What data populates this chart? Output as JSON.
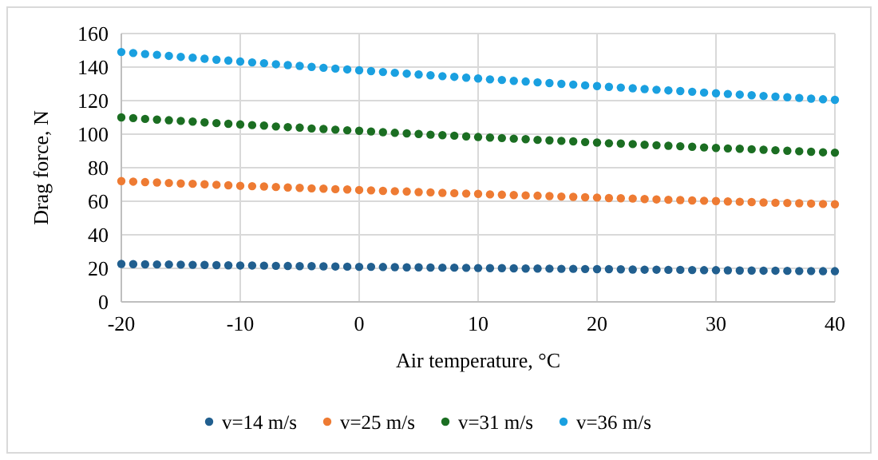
{
  "chart_data": {
    "type": "scatter",
    "xlabel": "Air temperature, °C",
    "ylabel": "Drag force, N",
    "xlim": [
      -20,
      40
    ],
    "xticks": [
      -20,
      -10,
      0,
      10,
      20,
      30,
      40
    ],
    "ylim": [
      0,
      160
    ],
    "yticks": [
      0,
      20,
      40,
      60,
      80,
      100,
      120,
      140,
      160
    ],
    "grid": true,
    "legend": "bottom",
    "marker": "circle",
    "x": [
      -20,
      -19,
      -18,
      -17,
      -16,
      -15,
      -14,
      -13,
      -12,
      -11,
      -10,
      -9,
      -8,
      -7,
      -6,
      -5,
      -4,
      -3,
      -2,
      -1,
      0,
      1,
      2,
      3,
      4,
      5,
      6,
      7,
      8,
      9,
      10,
      11,
      12,
      13,
      14,
      15,
      16,
      17,
      18,
      19,
      20,
      21,
      22,
      23,
      24,
      25,
      26,
      27,
      28,
      29,
      30,
      31,
      32,
      33,
      34,
      35,
      36,
      37,
      38,
      39,
      40
    ],
    "series": [
      {
        "name": "v=14 m/s",
        "color": "#215f8f",
        "values": [
          22.6,
          22.5,
          22.4,
          22.3,
          22.3,
          22.2,
          22.1,
          22.0,
          21.9,
          21.8,
          21.7,
          21.7,
          21.6,
          21.5,
          21.4,
          21.3,
          21.3,
          21.2,
          21.1,
          21.0,
          20.9,
          20.9,
          20.8,
          20.7,
          20.6,
          20.6,
          20.5,
          20.4,
          20.4,
          20.3,
          20.2,
          20.1,
          20.1,
          20.0,
          19.9,
          19.9,
          19.8,
          19.7,
          19.7,
          19.6,
          19.5,
          19.5,
          19.4,
          19.3,
          19.2,
          19.2,
          19.1,
          19.1,
          19.0,
          18.9,
          18.9,
          18.8,
          18.7,
          18.7,
          18.6,
          18.6,
          18.5,
          18.4,
          18.4,
          18.3,
          18.3
        ]
      },
      {
        "name": "v=25 m/s",
        "color": "#ee7b33",
        "values": [
          72.0,
          71.7,
          71.4,
          71.2,
          70.9,
          70.6,
          70.4,
          70.1,
          69.8,
          69.5,
          69.2,
          69.0,
          68.8,
          68.5,
          68.2,
          68.0,
          67.7,
          67.5,
          67.2,
          67.0,
          66.7,
          66.5,
          66.2,
          66.0,
          65.8,
          65.5,
          65.3,
          65.0,
          64.8,
          64.6,
          64.4,
          64.1,
          63.9,
          63.7,
          63.5,
          63.3,
          63.1,
          62.8,
          62.6,
          62.4,
          62.2,
          61.9,
          61.8,
          61.6,
          61.3,
          61.1,
          60.9,
          60.7,
          60.5,
          60.3,
          60.1,
          59.9,
          59.7,
          59.5,
          59.3,
          59.1,
          59.0,
          58.8,
          58.6,
          58.4,
          58.2
        ]
      },
      {
        "name": "v=31 m/s",
        "color": "#1b6e22",
        "values": [
          110.0,
          109.6,
          109.1,
          108.7,
          108.3,
          107.9,
          107.5,
          107.0,
          106.6,
          106.2,
          105.8,
          105.4,
          105.1,
          104.6,
          104.2,
          103.9,
          103.4,
          103.1,
          102.7,
          102.3,
          102.0,
          101.6,
          101.2,
          100.8,
          100.5,
          100.1,
          99.7,
          99.4,
          99.1,
          98.7,
          98.3,
          98.0,
          97.7,
          97.3,
          97.0,
          96.6,
          96.3,
          96.0,
          95.7,
          95.3,
          95.0,
          94.6,
          94.4,
          94.1,
          93.7,
          93.4,
          93.1,
          92.8,
          92.5,
          92.1,
          91.8,
          91.5,
          91.3,
          91.0,
          90.7,
          90.4,
          90.1,
          89.8,
          89.5,
          89.2,
          89.0
        ]
      },
      {
        "name": "v=36 m/s",
        "color": "#1aa0e0",
        "values": [
          149.0,
          148.4,
          147.8,
          147.3,
          146.7,
          146.1,
          145.6,
          145.0,
          144.4,
          143.9,
          143.3,
          142.8,
          142.3,
          141.7,
          141.2,
          140.7,
          140.1,
          139.6,
          139.1,
          138.6,
          138.1,
          137.6,
          137.1,
          136.6,
          136.1,
          135.6,
          135.1,
          134.6,
          134.2,
          133.7,
          133.2,
          132.7,
          132.3,
          131.8,
          131.4,
          130.9,
          130.5,
          130.0,
          129.6,
          129.1,
          128.7,
          128.2,
          127.8,
          127.4,
          126.9,
          126.5,
          126.1,
          125.7,
          125.3,
          124.8,
          124.4,
          124.0,
          123.6,
          123.2,
          122.8,
          122.4,
          122.0,
          121.6,
          121.2,
          120.8,
          120.5
        ]
      }
    ]
  }
}
